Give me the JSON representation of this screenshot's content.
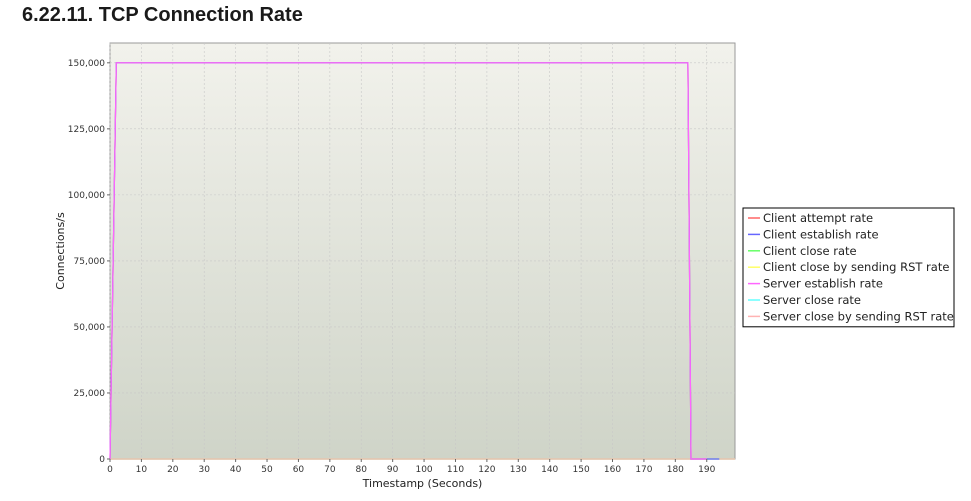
{
  "page": {
    "section_title": "6.22.11. TCP Connection Rate"
  },
  "chart_data": {
    "type": "line",
    "title": "",
    "xlabel": "Timestamp (Seconds)",
    "ylabel": "Connections/s",
    "xlim": [
      0,
      199
    ],
    "ylim": [
      0,
      157500
    ],
    "xticks": [
      0,
      10,
      20,
      30,
      40,
      50,
      60,
      70,
      80,
      90,
      100,
      110,
      120,
      130,
      140,
      150,
      160,
      170,
      180,
      190
    ],
    "yticks": [
      0,
      25000,
      50000,
      75000,
      100000,
      125000,
      150000
    ],
    "ytick_labels": [
      "0",
      "25,000",
      "50,000",
      "75,000",
      "100,000",
      "125,000",
      "150,000"
    ],
    "grid": true,
    "legend_position": "right",
    "colors": {
      "plot_bg_top": "#f2f2ec",
      "plot_bg_bottom": "#cfd4c8",
      "grid": "#c8c8c8"
    },
    "series": [
      {
        "name": "Client attempt rate",
        "color": "#ff6666",
        "x": [
          0,
          2,
          184,
          185,
          190
        ],
        "y": [
          0,
          150000,
          150000,
          0,
          0
        ]
      },
      {
        "name": "Client establish rate",
        "color": "#6666ff",
        "x": [
          0,
          2,
          184,
          185,
          190,
          194
        ],
        "y": [
          0,
          150000,
          150000,
          0,
          0,
          0
        ]
      },
      {
        "name": "Client close rate",
        "color": "#66ff66",
        "x": [
          0,
          199
        ],
        "y": [
          0,
          0
        ]
      },
      {
        "name": "Client close by sending RST rate",
        "color": "#ffff66",
        "x": [
          0,
          199
        ],
        "y": [
          0,
          0
        ]
      },
      {
        "name": "Server establish rate",
        "color": "#ff66ff",
        "x": [
          0,
          2,
          184,
          185,
          190
        ],
        "y": [
          0,
          150000,
          150000,
          0,
          0
        ]
      },
      {
        "name": "Server close rate",
        "color": "#66ffff",
        "x": [
          0,
          199
        ],
        "y": [
          0,
          0
        ]
      },
      {
        "name": "Server close by sending RST rate",
        "color": "#ffb3b3",
        "x": [
          0,
          199
        ],
        "y": [
          0,
          0
        ]
      }
    ]
  }
}
